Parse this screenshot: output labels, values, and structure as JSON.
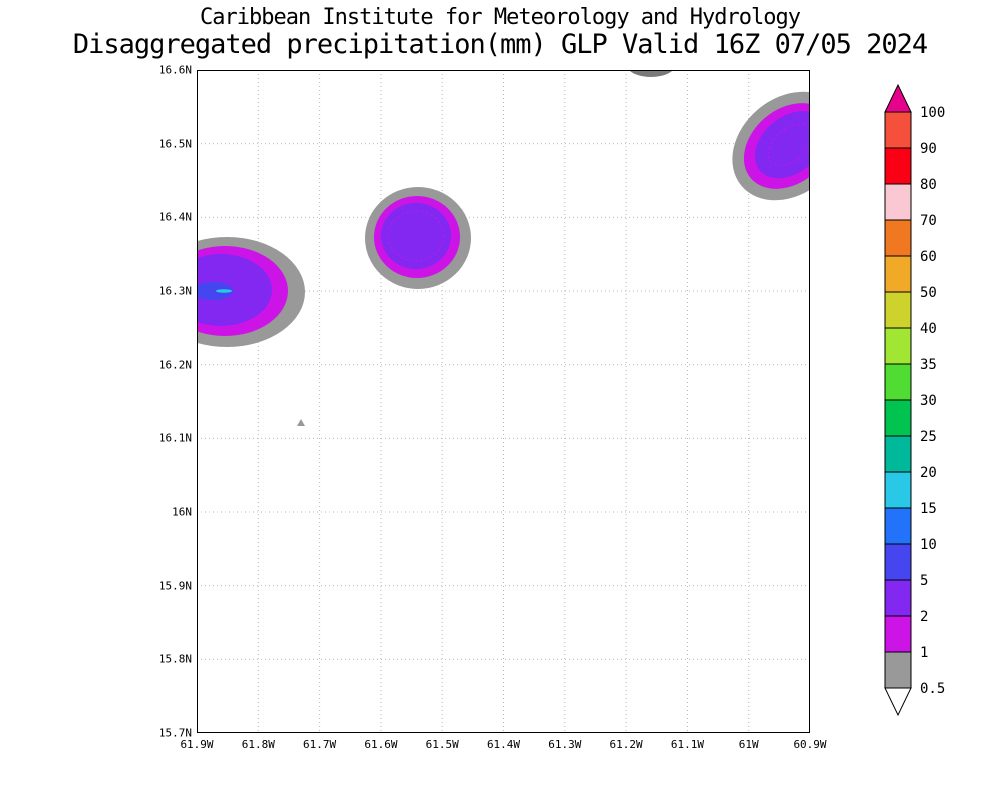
{
  "titles": {
    "line1": "Caribbean Institute for Meteorology and Hydrology",
    "line2": "Disaggregated precipitation(mm) GLP Valid 16Z 07/05 2024"
  },
  "chart_data": {
    "type": "heatmap",
    "title": "Disaggregated precipitation(mm) GLP Valid 16Z 07/05 2024",
    "subtitle": "Caribbean Institute for Meteorology and Hydrology",
    "variable": "Disaggregated precipitation",
    "units": "mm",
    "region": "GLP",
    "valid": "16Z 07/05 2024",
    "grid": true,
    "legend_position": "right",
    "x_ticks": [
      "61.9W",
      "61.8W",
      "61.7W",
      "61.6W",
      "61.5W",
      "61.4W",
      "61.3W",
      "61.2W",
      "61.1W",
      "61W",
      "60.9W"
    ],
    "y_ticks": [
      "16.6N",
      "16.5N",
      "16.4N",
      "16.3N",
      "16.2N",
      "16.1N",
      "16N",
      "15.9N",
      "15.8N",
      "15.7N"
    ],
    "x_range_deg_west": [
      61.9,
      60.9
    ],
    "y_range_deg_north": [
      15.7,
      16.6
    ],
    "colorbar_levels": [
      0.5,
      1,
      2,
      5,
      10,
      15,
      20,
      25,
      30,
      35,
      40,
      50,
      60,
      70,
      80,
      90,
      100
    ],
    "cells": [
      {
        "name": "west-coast-cell",
        "center_lon_w": 61.85,
        "center_lat_n": 16.3,
        "peak_mm": "5-10",
        "edge_clipped": "west"
      },
      {
        "name": "central-cell",
        "center_lon_w": 61.53,
        "center_lat_n": 16.37,
        "peak_mm": "2-5"
      },
      {
        "name": "northeast-cell",
        "center_lon_w": 60.93,
        "center_lat_n": 16.49,
        "peak_mm": "2-5",
        "edge_clipped": "east"
      },
      {
        "name": "north-edge-cell",
        "center_lon_w": 61.16,
        "center_lat_n": 16.6,
        "peak_mm": "0.5-1",
        "edge_clipped": "north"
      },
      {
        "name": "isolated-speck",
        "center_lon_w": 61.73,
        "center_lat_n": 16.12,
        "peak_mm": "0.5-1"
      }
    ]
  },
  "colorbar": {
    "labels": [
      "100",
      "90",
      "80",
      "70",
      "60",
      "50",
      "40",
      "35",
      "30",
      "25",
      "20",
      "15",
      "10",
      "5",
      "2",
      "1",
      "0.5"
    ],
    "arrow_top_color": "#e6028c",
    "arrow_bottom_color": "#ffffff",
    "segment_colors": [
      "#f4503c",
      "#fa0014",
      "#fac8d2",
      "#f07820",
      "#f0aa28",
      "#cdd22d",
      "#a0e632",
      "#50dc32",
      "#00c350",
      "#00b99b",
      "#28c8e6",
      "#2373fa",
      "#4646f0",
      "#8228f0",
      "#cd14e6",
      "#999999"
    ]
  },
  "colors": {
    "grid": "#b9b9b9",
    "border": "#000000",
    "shade_gray": "#999999",
    "shade_dark_gray": "#7a7a7a",
    "shade_magenta": "#cd14e6",
    "shade_violet": "#8228f0",
    "shade_indigo": "#4646f0",
    "shade_cyan": "#28c8e6"
  }
}
